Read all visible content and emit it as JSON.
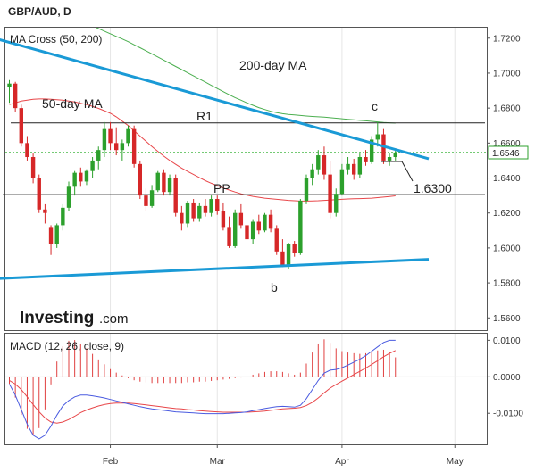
{
  "chart_title": "GBP/AUD, D",
  "chart_data": [
    {
      "type": "candlestick",
      "panel_label": "MA Cross (50, 200)",
      "y_ticks": [
        "1.7200",
        "1.7000",
        "1.6800",
        "1.6600",
        "1.6400",
        "1.6200",
        "1.6000",
        "1.5800",
        "1.5600"
      ],
      "ylim": [
        1.553,
        1.726
      ],
      "x_ticks": [
        "Feb",
        "Mar",
        "Apr",
        "May"
      ],
      "current_price": "1.6546",
      "candles": [
        [
          1.692,
          1.696,
          1.683,
          1.694
        ],
        [
          1.694,
          1.695,
          1.678,
          1.68
        ],
        [
          1.68,
          1.682,
          1.658,
          1.66
        ],
        [
          1.66,
          1.664,
          1.65,
          1.652
        ],
        [
          1.652,
          1.654,
          1.637,
          1.64
        ],
        [
          1.64,
          1.642,
          1.62,
          1.622
        ],
        [
          1.622,
          1.625,
          1.614,
          1.62
        ],
        [
          1.612,
          1.613,
          1.596,
          1.602
        ],
        [
          1.602,
          1.614,
          1.6,
          1.613
        ],
        [
          1.613,
          1.625,
          1.61,
          1.623
        ],
        [
          1.623,
          1.638,
          1.621,
          1.635
        ],
        [
          1.635,
          1.644,
          1.63,
          1.643
        ],
        [
          1.643,
          1.646,
          1.635,
          1.638
        ],
        [
          1.638,
          1.645,
          1.636,
          1.644
        ],
        [
          1.644,
          1.652,
          1.64,
          1.65
        ],
        [
          1.65,
          1.658,
          1.645,
          1.656
        ],
        [
          1.656,
          1.672,
          1.652,
          1.668
        ],
        [
          1.668,
          1.672,
          1.656,
          1.66
        ],
        [
          1.66,
          1.669,
          1.653,
          1.656
        ],
        [
          1.656,
          1.662,
          1.65,
          1.66
        ],
        [
          1.66,
          1.67,
          1.658,
          1.668
        ],
        [
          1.668,
          1.67,
          1.646,
          1.648
        ],
        [
          1.648,
          1.65,
          1.628,
          1.63
        ],
        [
          1.63,
          1.634,
          1.621,
          1.624
        ],
        [
          1.624,
          1.636,
          1.623,
          1.633
        ],
        [
          1.633,
          1.644,
          1.632,
          1.643
        ],
        [
          1.643,
          1.645,
          1.63,
          1.632
        ],
        [
          1.632,
          1.642,
          1.63,
          1.64
        ],
        [
          1.64,
          1.642,
          1.618,
          1.62
        ],
        [
          1.62,
          1.624,
          1.61,
          1.614
        ],
        [
          1.614,
          1.627,
          1.612,
          1.626
        ],
        [
          1.626,
          1.628,
          1.615,
          1.617
        ],
        [
          1.617,
          1.626,
          1.615,
          1.624
        ],
        [
          1.624,
          1.628,
          1.618,
          1.62
        ],
        [
          1.62,
          1.63,
          1.618,
          1.628
        ],
        [
          1.628,
          1.63,
          1.619,
          1.621
        ],
        [
          1.621,
          1.626,
          1.61,
          1.612
        ],
        [
          1.612,
          1.618,
          1.6,
          1.601
        ],
        [
          1.601,
          1.622,
          1.6,
          1.62
        ],
        [
          1.62,
          1.625,
          1.611,
          1.613
        ],
        [
          1.613,
          1.619,
          1.601,
          1.605
        ],
        [
          1.605,
          1.616,
          1.602,
          1.615
        ],
        [
          1.615,
          1.619,
          1.608,
          1.61
        ],
        [
          1.61,
          1.62,
          1.609,
          1.619
        ],
        [
          1.619,
          1.622,
          1.609,
          1.611
        ],
        [
          1.611,
          1.613,
          1.596,
          1.598
        ],
        [
          1.598,
          1.605,
          1.589,
          1.59
        ],
        [
          1.59,
          1.603,
          1.588,
          1.602
        ],
        [
          1.602,
          1.604,
          1.595,
          1.597
        ],
        [
          1.597,
          1.628,
          1.596,
          1.627
        ],
        [
          1.627,
          1.642,
          1.625,
          1.64
        ],
        [
          1.64,
          1.648,
          1.636,
          1.645
        ],
        [
          1.645,
          1.656,
          1.642,
          1.653
        ],
        [
          1.653,
          1.658,
          1.639,
          1.642
        ],
        [
          1.642,
          1.65,
          1.617,
          1.62
        ],
        [
          1.62,
          1.634,
          1.618,
          1.631
        ],
        [
          1.631,
          1.648,
          1.63,
          1.645
        ],
        [
          1.645,
          1.652,
          1.642,
          1.648
        ],
        [
          1.648,
          1.651,
          1.639,
          1.642
        ],
        [
          1.642,
          1.654,
          1.64,
          1.652
        ],
        [
          1.652,
          1.656,
          1.647,
          1.649
        ],
        [
          1.649,
          1.664,
          1.648,
          1.662
        ],
        [
          1.662,
          1.672,
          1.658,
          1.665
        ],
        [
          1.665,
          1.668,
          1.648,
          1.65
        ],
        [
          1.65,
          1.654,
          1.647,
          1.652
        ],
        [
          1.652,
          1.656,
          1.65,
          1.6546
        ]
      ],
      "ma_50": [
        1.682,
        1.683,
        1.684,
        1.6845,
        1.685,
        1.6852,
        1.6852,
        1.685,
        1.6848,
        1.6845,
        1.684,
        1.6835,
        1.6828,
        1.682,
        1.681,
        1.6798,
        1.6785,
        1.677,
        1.675,
        1.6725,
        1.67,
        1.667,
        1.664,
        1.661,
        1.658,
        1.6552,
        1.6525,
        1.65,
        1.6478,
        1.6457,
        1.6438,
        1.642,
        1.6402,
        1.6385,
        1.637,
        1.6356,
        1.6343,
        1.6331,
        1.632,
        1.631,
        1.6302,
        1.6295,
        1.629,
        1.6285,
        1.6281,
        1.6278,
        1.6275,
        1.6272,
        1.627,
        1.6268,
        1.6268,
        1.6269,
        1.627,
        1.6272,
        1.6274,
        1.6276,
        1.6278,
        1.628,
        1.6281,
        1.6282,
        1.6283,
        1.6285,
        1.6288,
        1.6291,
        1.6294,
        1.6298
      ],
      "ma_200": [
        1.748,
        1.7465,
        1.745,
        1.7435,
        1.742,
        1.7405,
        1.739,
        1.7375,
        1.736,
        1.7345,
        1.733,
        1.7315,
        1.73,
        1.7285,
        1.727,
        1.7255,
        1.724,
        1.7225,
        1.721,
        1.7195,
        1.718,
        1.7162,
        1.7145,
        1.7128,
        1.711,
        1.7092,
        1.7074,
        1.7056,
        1.7038,
        1.702,
        1.7002,
        1.6984,
        1.6966,
        1.6948,
        1.693,
        1.6912,
        1.6894,
        1.6876,
        1.686,
        1.6845,
        1.683,
        1.6816,
        1.6803,
        1.6792,
        1.6782,
        1.6774,
        1.6768,
        1.6764,
        1.6761,
        1.6758,
        1.6755,
        1.6752,
        1.675,
        1.6748,
        1.6745,
        1.6742,
        1.6739,
        1.6736,
        1.6733,
        1.673,
        1.6727,
        1.6724,
        1.6721,
        1.6718,
        1.6716,
        1.6714
      ],
      "annotations": [
        {
          "text": "50-day MA"
        },
        {
          "text": "200-day MA"
        },
        {
          "text": "R1"
        },
        {
          "text": "PP"
        },
        {
          "text": "c"
        },
        {
          "text": "b"
        },
        {
          "text": "1.6300"
        }
      ],
      "levels": {
        "R1": 1.6715,
        "PP": 1.6305
      },
      "upper_trendline": [
        [
          -2,
          1.7195
        ],
        [
          70.6,
          1.651
        ]
      ],
      "lower_trendline": [
        [
          -2,
          1.5825
        ],
        [
          70.6,
          1.5935
        ]
      ],
      "colors": {
        "bull": "#2ca02c",
        "bear": "#d62728",
        "ma50": "#e8474a",
        "ma200": "#4caf50",
        "trend": "#1a9ad6",
        "price_line": "#22aa22"
      }
    },
    {
      "type": "macd",
      "panel_label": "MACD (12, 26, close, 9)",
      "y_ticks": [
        "0.0100",
        "0.0000",
        "-0.0100"
      ],
      "ylim": [
        -0.0185,
        0.0118
      ],
      "macd": [
        -0.002,
        -0.005,
        -0.009,
        -0.013,
        -0.016,
        -0.017,
        -0.016,
        -0.0135,
        -0.0105,
        -0.008,
        -0.0065,
        -0.0055,
        -0.005,
        -0.005,
        -0.0052,
        -0.0055,
        -0.0058,
        -0.0062,
        -0.0066,
        -0.007,
        -0.0074,
        -0.0078,
        -0.0082,
        -0.0085,
        -0.0088,
        -0.009,
        -0.0092,
        -0.0094,
        -0.0096,
        -0.0097,
        -0.0098,
        -0.0099,
        -0.01,
        -0.0101,
        -0.0101,
        -0.0101,
        -0.0101,
        -0.01,
        -0.0099,
        -0.0098,
        -0.0096,
        -0.0093,
        -0.009,
        -0.0087,
        -0.0084,
        -0.0082,
        -0.0081,
        -0.0082,
        -0.0083,
        -0.0078,
        -0.006,
        -0.0035,
        -0.001,
        0.001,
        0.0018,
        0.002,
        0.0025,
        0.0032,
        0.004,
        0.0048,
        0.0058,
        0.007,
        0.0082,
        0.0094,
        0.01,
        0.01
      ],
      "signal": [
        -0.001,
        -0.002,
        -0.0035,
        -0.0055,
        -0.0076,
        -0.0096,
        -0.0113,
        -0.0124,
        -0.0127,
        -0.0124,
        -0.0117,
        -0.0108,
        -0.0098,
        -0.0091,
        -0.0085,
        -0.008,
        -0.0076,
        -0.0073,
        -0.0072,
        -0.0072,
        -0.0072,
        -0.0073,
        -0.0075,
        -0.0077,
        -0.0079,
        -0.0081,
        -0.0083,
        -0.0085,
        -0.0087,
        -0.0088,
        -0.009,
        -0.0091,
        -0.0093,
        -0.0094,
        -0.0095,
        -0.0096,
        -0.0097,
        -0.0097,
        -0.0097,
        -0.0097,
        -0.0097,
        -0.0096,
        -0.0095,
        -0.0094,
        -0.0092,
        -0.009,
        -0.0088,
        -0.0087,
        -0.0086,
        -0.0084,
        -0.0079,
        -0.007,
        -0.0058,
        -0.0044,
        -0.0031,
        -0.0021,
        -0.0012,
        -0.0003,
        0.0006,
        0.0015,
        0.0024,
        0.0034,
        0.0044,
        0.0055,
        0.0064,
        0.0072
      ],
      "colors": {
        "macd": "#4a5be0",
        "signal": "#e8474a",
        "hist": "#e04040"
      }
    }
  ],
  "logo": {
    "main": "Investing",
    "suffix": ".com"
  }
}
